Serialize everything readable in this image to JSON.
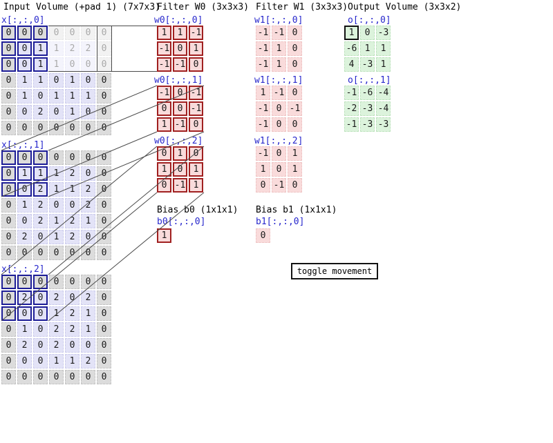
{
  "titles": {
    "input": "Input Volume (+pad 1) (7x7x3)",
    "filter_w0": "Filter W0 (3x3x3)",
    "filter_w1": "Filter W1 (3x3x3)",
    "output": "Output Volume (3x3x2)",
    "bias_b0": "Bias b0 (1x1x1)",
    "bias_b1": "Bias b1 (1x1x1)"
  },
  "input": {
    "slices": [
      {
        "label": "x[:,:,0]",
        "rows": [
          [
            0,
            0,
            0,
            0,
            0,
            0,
            0
          ],
          [
            0,
            0,
            1,
            1,
            2,
            2,
            0
          ],
          [
            0,
            0,
            1,
            1,
            0,
            0,
            0
          ],
          [
            0,
            1,
            1,
            0,
            1,
            0,
            0
          ],
          [
            0,
            1,
            0,
            1,
            1,
            1,
            0
          ],
          [
            0,
            0,
            2,
            0,
            1,
            0,
            0
          ],
          [
            0,
            0,
            0,
            0,
            0,
            0,
            0
          ]
        ]
      },
      {
        "label": "x[:,:,1]",
        "rows": [
          [
            0,
            0,
            0,
            0,
            0,
            0,
            0
          ],
          [
            0,
            1,
            1,
            1,
            2,
            0,
            0
          ],
          [
            0,
            0,
            2,
            1,
            1,
            2,
            0
          ],
          [
            0,
            1,
            2,
            0,
            0,
            2,
            0
          ],
          [
            0,
            0,
            2,
            1,
            2,
            1,
            0
          ],
          [
            0,
            2,
            0,
            1,
            2,
            0,
            0
          ],
          [
            0,
            0,
            0,
            0,
            0,
            0,
            0
          ]
        ]
      },
      {
        "label": "x[:,:,2]",
        "rows": [
          [
            0,
            0,
            0,
            0,
            0,
            0,
            0
          ],
          [
            0,
            2,
            0,
            2,
            0,
            2,
            0
          ],
          [
            0,
            0,
            0,
            1,
            2,
            1,
            0
          ],
          [
            0,
            1,
            0,
            2,
            2,
            1,
            0
          ],
          [
            0,
            2,
            0,
            2,
            0,
            0,
            0
          ],
          [
            0,
            0,
            0,
            1,
            1,
            2,
            0
          ],
          [
            0,
            0,
            0,
            0,
            0,
            0,
            0
          ]
        ]
      }
    ],
    "highlight_rows": 3,
    "highlight_cols": 3
  },
  "filter_w0": {
    "slices": [
      {
        "label": "w0[:,:,0]",
        "rows": [
          [
            1,
            1,
            -1
          ],
          [
            -1,
            0,
            1
          ],
          [
            -1,
            -1,
            0
          ]
        ]
      },
      {
        "label": "w0[:,:,1]",
        "rows": [
          [
            -1,
            0,
            -1
          ],
          [
            0,
            0,
            -1
          ],
          [
            1,
            -1,
            0
          ]
        ]
      },
      {
        "label": "w0[:,:,2]",
        "rows": [
          [
            0,
            1,
            0
          ],
          [
            1,
            0,
            1
          ],
          [
            0,
            -1,
            1
          ]
        ]
      }
    ]
  },
  "filter_w1": {
    "slices": [
      {
        "label": "w1[:,:,0]",
        "rows": [
          [
            -1,
            -1,
            0
          ],
          [
            -1,
            1,
            0
          ],
          [
            -1,
            1,
            0
          ]
        ]
      },
      {
        "label": "w1[:,:,1]",
        "rows": [
          [
            1,
            -1,
            0
          ],
          [
            -1,
            0,
            -1
          ],
          [
            -1,
            0,
            0
          ]
        ]
      },
      {
        "label": "w1[:,:,2]",
        "rows": [
          [
            -1,
            0,
            1
          ],
          [
            1,
            0,
            1
          ],
          [
            0,
            -1,
            0
          ]
        ]
      }
    ]
  },
  "output": {
    "slices": [
      {
        "label": "o[:,:,0]",
        "rows": [
          [
            1,
            0,
            -3
          ],
          [
            -6,
            1,
            1
          ],
          [
            4,
            -3,
            1
          ]
        ]
      },
      {
        "label": "o[:,:,1]",
        "rows": [
          [
            -1,
            -6,
            -4
          ],
          [
            -2,
            -3,
            -4
          ],
          [
            -1,
            -3,
            -3
          ]
        ]
      }
    ],
    "highlight": {
      "slice": 0,
      "row": 0,
      "col": 0
    }
  },
  "bias_b0": {
    "label": "b0[:,:,0]",
    "value": "1"
  },
  "bias_b1": {
    "label": "b1[:,:,0]",
    "value": "0"
  },
  "button": {
    "label": "toggle movement"
  },
  "colors": {
    "input_highlight_border": "#1c1c96",
    "filter_active_border": "#a02020",
    "filter_fill": "#f9dbdb",
    "input_pad_fill": "#dcdcdc",
    "input_fill": "#e3e3f7",
    "output_fill": "#dcf3dc",
    "output_highlight_border": "#111111",
    "label_blue": "#2626cc",
    "connector_line": "#4a4a4a"
  }
}
